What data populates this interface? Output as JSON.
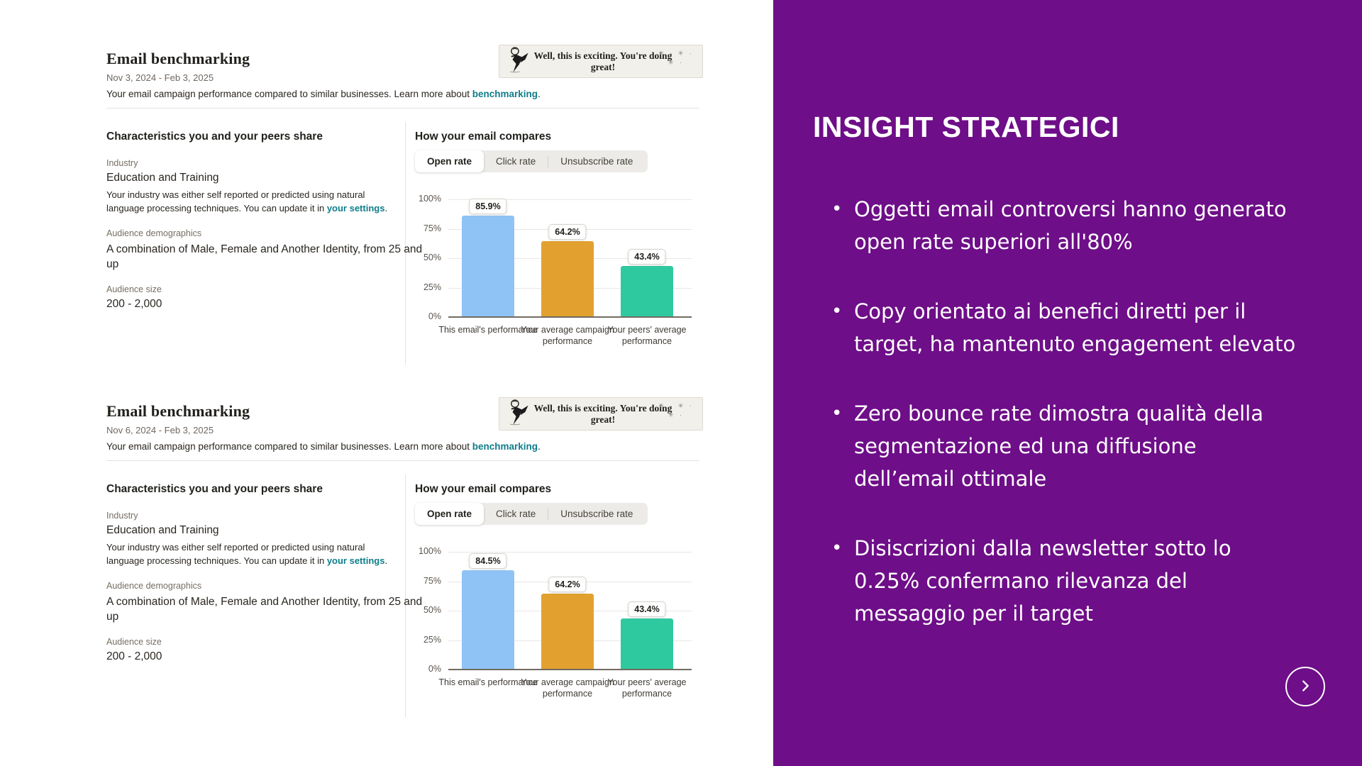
{
  "colors": {
    "panel_purple": "#6e0e88",
    "link_teal": "#0e7d8a",
    "bar_blue": "#8fc3f5",
    "bar_orange": "#e2a12f",
    "bar_teal": "#2fc99f"
  },
  "cards": [
    {
      "title": "Email benchmarking",
      "date_range": "Nov 3, 2024 - Feb 3, 2025",
      "description": "Your email campaign performance compared to similar businesses. Learn more about",
      "description_link": "benchmarking",
      "description_period": ".",
      "banner": {
        "icon": "freddie-dancing-illustration",
        "text": "Well, this is exciting. You're doing great!",
        "sparkles": "✳ · ✳ · ✳ ·"
      },
      "characteristics": {
        "heading": "Characteristics you and your peers share",
        "industry_label": "Industry",
        "industry_value": "Education and Training",
        "industry_note": "Your industry was either self reported or predicted using natural language processing techniques. You can update it in",
        "industry_note_link": "your settings",
        "industry_note_period": ".",
        "demographics_label": "Audience demographics",
        "demographics_value": "A combination of Male, Female and Another Identity, from 25 and up",
        "size_label": "Audience size",
        "size_value": "200 - 2,000"
      },
      "chart_heading": "How your email compares",
      "tabs": [
        {
          "label": "Open rate",
          "active": true
        },
        {
          "label": "Click rate",
          "active": false
        },
        {
          "label": "Unsubscribe rate",
          "active": false
        }
      ]
    },
    {
      "title": "Email benchmarking",
      "date_range": "Nov 6, 2024 - Feb 3, 2025",
      "description": "Your email campaign performance compared to similar businesses. Learn more about",
      "description_link": "benchmarking",
      "description_period": ".",
      "banner": {
        "icon": "freddie-dancing-illustration",
        "text": "Well, this is exciting. You're doing great!",
        "sparkles": "✳ · ✳ · ✳ ·"
      },
      "characteristics": {
        "heading": "Characteristics you and your peers share",
        "industry_label": "Industry",
        "industry_value": "Education and Training",
        "industry_note": "Your industry was either self reported or predicted using natural language processing techniques. You can update it in",
        "industry_note_link": "your settings",
        "industry_note_period": ".",
        "demographics_label": "Audience demographics",
        "demographics_value": "A combination of Male, Female and Another Identity, from 25 and up",
        "size_label": "Audience size",
        "size_value": "200 - 2,000"
      },
      "chart_heading": "How your email compares",
      "tabs": [
        {
          "label": "Open rate",
          "active": true
        },
        {
          "label": "Click rate",
          "active": false
        },
        {
          "label": "Unsubscribe rate",
          "active": false
        }
      ]
    }
  ],
  "chart_data": [
    {
      "type": "bar",
      "title": "How your email compares",
      "metric": "Open rate",
      "categories": [
        "This email's performance",
        "Your average campaign performance",
        "Your peers' average performance"
      ],
      "values": [
        85.9,
        64.2,
        43.4
      ],
      "value_labels": [
        "85.9%",
        "64.2%",
        "43.4%"
      ],
      "bar_colors": [
        "#8fc3f5",
        "#e2a12f",
        "#2fc99f"
      ],
      "y_ticks": [
        "100%",
        "75%",
        "50%",
        "25%",
        "0%"
      ],
      "ylim": [
        0,
        100
      ],
      "grid": true,
      "xlabel": "",
      "ylabel": ""
    },
    {
      "type": "bar",
      "title": "How your email compares",
      "metric": "Open rate",
      "categories": [
        "This email's performance",
        "Your average campaign performance",
        "Your peers' average performance"
      ],
      "values": [
        84.5,
        64.2,
        43.4
      ],
      "value_labels": [
        "84.5%",
        "64.2%",
        "43.4%"
      ],
      "bar_colors": [
        "#8fc3f5",
        "#e2a12f",
        "#2fc99f"
      ],
      "y_ticks": [
        "100%",
        "75%",
        "50%",
        "25%",
        "0%"
      ],
      "ylim": [
        0,
        100
      ],
      "grid": true,
      "xlabel": "",
      "ylabel": ""
    }
  ],
  "right_panel": {
    "heading": "INSIGHT STRATEGICI",
    "bullets": [
      "Oggetti email controversi hanno generato open rate superiori all'80%",
      "Copy orientato ai benefici diretti per il target, ha mantenuto engagement elevato",
      "Zero bounce rate dimostra qualità della segmentazione ed una diffusione dell’email ottimale",
      "Disiscrizioni dalla newsletter sotto lo 0.25% confermano rilevanza del messaggio per il target"
    ],
    "next_button_icon": "chevron-right"
  }
}
